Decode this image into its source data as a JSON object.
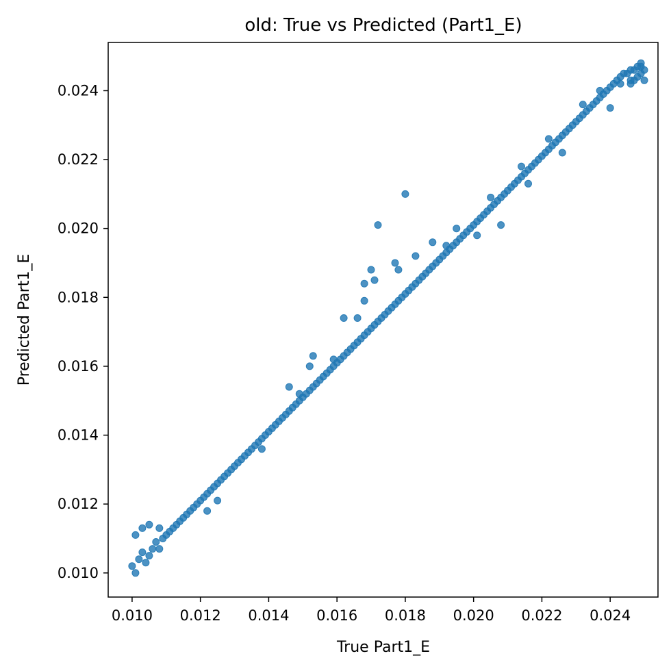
{
  "chart_data": {
    "type": "scatter",
    "title": "old: True vs Predicted (Part1_E)",
    "xlabel": "True Part1_E",
    "ylabel": "Predicted Part1_E",
    "xlim": [
      0.0093,
      0.0254
    ],
    "ylim": [
      0.0093,
      0.0254
    ],
    "xticks": [
      "0.010",
      "0.012",
      "0.014",
      "0.016",
      "0.018",
      "0.020",
      "0.022",
      "0.024"
    ],
    "yticks": [
      "0.010",
      "0.012",
      "0.014",
      "0.016",
      "0.018",
      "0.020",
      "0.022",
      "0.024"
    ],
    "grid": false,
    "marker_color": "#1f77b4",
    "series": [
      {
        "points": [
          [
            0.01,
            0.0102
          ],
          [
            0.0101,
            0.01
          ],
          [
            0.0102,
            0.0104
          ],
          [
            0.0103,
            0.0106
          ],
          [
            0.0104,
            0.0103
          ],
          [
            0.0105,
            0.0105
          ],
          [
            0.0106,
            0.0107
          ],
          [
            0.0107,
            0.0109
          ],
          [
            0.0108,
            0.0107
          ],
          [
            0.0109,
            0.011
          ],
          [
            0.011,
            0.0111
          ],
          [
            0.0111,
            0.0112
          ],
          [
            0.0112,
            0.0113
          ],
          [
            0.0113,
            0.0114
          ],
          [
            0.0114,
            0.0115
          ],
          [
            0.0115,
            0.0116
          ],
          [
            0.0116,
            0.0117
          ],
          [
            0.0117,
            0.0118
          ],
          [
            0.0118,
            0.0119
          ],
          [
            0.0119,
            0.012
          ],
          [
            0.012,
            0.0121
          ],
          [
            0.0121,
            0.0122
          ],
          [
            0.0122,
            0.0123
          ],
          [
            0.0123,
            0.0124
          ],
          [
            0.0124,
            0.0125
          ],
          [
            0.0125,
            0.0126
          ],
          [
            0.0126,
            0.0127
          ],
          [
            0.0127,
            0.0128
          ],
          [
            0.0128,
            0.0129
          ],
          [
            0.0129,
            0.013
          ],
          [
            0.013,
            0.0131
          ],
          [
            0.0131,
            0.0132
          ],
          [
            0.0132,
            0.0133
          ],
          [
            0.0133,
            0.0134
          ],
          [
            0.0134,
            0.0135
          ],
          [
            0.0135,
            0.0136
          ],
          [
            0.0136,
            0.0137
          ],
          [
            0.0137,
            0.0138
          ],
          [
            0.0138,
            0.0139
          ],
          [
            0.0139,
            0.014
          ],
          [
            0.014,
            0.0141
          ],
          [
            0.0141,
            0.0142
          ],
          [
            0.0142,
            0.0143
          ],
          [
            0.0143,
            0.0144
          ],
          [
            0.0144,
            0.0145
          ],
          [
            0.0145,
            0.0146
          ],
          [
            0.0146,
            0.0147
          ],
          [
            0.0147,
            0.0148
          ],
          [
            0.0148,
            0.0149
          ],
          [
            0.0149,
            0.015
          ],
          [
            0.015,
            0.0151
          ],
          [
            0.0151,
            0.0152
          ],
          [
            0.0152,
            0.0153
          ],
          [
            0.0153,
            0.0154
          ],
          [
            0.0154,
            0.0155
          ],
          [
            0.0155,
            0.0156
          ],
          [
            0.0156,
            0.0157
          ],
          [
            0.0157,
            0.0158
          ],
          [
            0.0158,
            0.0159
          ],
          [
            0.0159,
            0.016
          ],
          [
            0.016,
            0.0161
          ],
          [
            0.0161,
            0.0162
          ],
          [
            0.0162,
            0.0163
          ],
          [
            0.0163,
            0.0164
          ],
          [
            0.0164,
            0.0165
          ],
          [
            0.0165,
            0.0166
          ],
          [
            0.0166,
            0.0167
          ],
          [
            0.0167,
            0.0168
          ],
          [
            0.0168,
            0.0169
          ],
          [
            0.0169,
            0.017
          ],
          [
            0.017,
            0.0171
          ],
          [
            0.0171,
            0.0172
          ],
          [
            0.0172,
            0.0173
          ],
          [
            0.0173,
            0.0174
          ],
          [
            0.0174,
            0.0175
          ],
          [
            0.0175,
            0.0176
          ],
          [
            0.0176,
            0.0177
          ],
          [
            0.0177,
            0.0178
          ],
          [
            0.0178,
            0.0179
          ],
          [
            0.0179,
            0.018
          ],
          [
            0.018,
            0.0181
          ],
          [
            0.0181,
            0.0182
          ],
          [
            0.0182,
            0.0183
          ],
          [
            0.0183,
            0.0184
          ],
          [
            0.0184,
            0.0185
          ],
          [
            0.0185,
            0.0186
          ],
          [
            0.0186,
            0.0187
          ],
          [
            0.0187,
            0.0188
          ],
          [
            0.0188,
            0.0189
          ],
          [
            0.0189,
            0.019
          ],
          [
            0.019,
            0.0191
          ],
          [
            0.0191,
            0.0192
          ],
          [
            0.0192,
            0.0193
          ],
          [
            0.0193,
            0.0194
          ],
          [
            0.0194,
            0.0195
          ],
          [
            0.0195,
            0.0196
          ],
          [
            0.0196,
            0.0197
          ],
          [
            0.0197,
            0.0198
          ],
          [
            0.0198,
            0.0199
          ],
          [
            0.0199,
            0.02
          ],
          [
            0.02,
            0.0201
          ],
          [
            0.0201,
            0.0202
          ],
          [
            0.0202,
            0.0203
          ],
          [
            0.0203,
            0.0204
          ],
          [
            0.0204,
            0.0205
          ],
          [
            0.0205,
            0.0206
          ],
          [
            0.0206,
            0.0207
          ],
          [
            0.0207,
            0.0208
          ],
          [
            0.0208,
            0.0209
          ],
          [
            0.0209,
            0.021
          ],
          [
            0.021,
            0.0211
          ],
          [
            0.0211,
            0.0212
          ],
          [
            0.0212,
            0.0213
          ],
          [
            0.0213,
            0.0214
          ],
          [
            0.0214,
            0.0215
          ],
          [
            0.0215,
            0.0216
          ],
          [
            0.0216,
            0.0217
          ],
          [
            0.0217,
            0.0218
          ],
          [
            0.0218,
            0.0219
          ],
          [
            0.0219,
            0.022
          ],
          [
            0.022,
            0.0221
          ],
          [
            0.0221,
            0.0222
          ],
          [
            0.0222,
            0.0223
          ],
          [
            0.0223,
            0.0224
          ],
          [
            0.0224,
            0.0225
          ],
          [
            0.0225,
            0.0226
          ],
          [
            0.0226,
            0.0227
          ],
          [
            0.0227,
            0.0228
          ],
          [
            0.0228,
            0.0229
          ],
          [
            0.0229,
            0.023
          ],
          [
            0.023,
            0.0231
          ],
          [
            0.0231,
            0.0232
          ],
          [
            0.0232,
            0.0233
          ],
          [
            0.0233,
            0.0234
          ],
          [
            0.0234,
            0.0235
          ],
          [
            0.0235,
            0.0236
          ],
          [
            0.0236,
            0.0237
          ],
          [
            0.0237,
            0.0238
          ],
          [
            0.0238,
            0.0239
          ],
          [
            0.0239,
            0.024
          ],
          [
            0.024,
            0.0241
          ],
          [
            0.0241,
            0.0242
          ],
          [
            0.0242,
            0.0243
          ],
          [
            0.0243,
            0.0244
          ],
          [
            0.0244,
            0.0245
          ],
          [
            0.0245,
            0.0245
          ],
          [
            0.0246,
            0.0246
          ],
          [
            0.0247,
            0.0246
          ],
          [
            0.0248,
            0.0247
          ],
          [
            0.0249,
            0.0247
          ],
          [
            0.025,
            0.0246
          ],
          [
            0.0249,
            0.0245
          ],
          [
            0.0248,
            0.0244
          ],
          [
            0.0247,
            0.0243
          ],
          [
            0.0246,
            0.0242
          ],
          [
            0.0101,
            0.0111
          ],
          [
            0.0103,
            0.0113
          ],
          [
            0.0105,
            0.0114
          ],
          [
            0.0108,
            0.0113
          ],
          [
            0.0122,
            0.0118
          ],
          [
            0.0125,
            0.0121
          ],
          [
            0.0138,
            0.0136
          ],
          [
            0.0146,
            0.0154
          ],
          [
            0.0149,
            0.0152
          ],
          [
            0.0152,
            0.016
          ],
          [
            0.0153,
            0.0163
          ],
          [
            0.0159,
            0.0162
          ],
          [
            0.0162,
            0.0174
          ],
          [
            0.0166,
            0.0174
          ],
          [
            0.0168,
            0.0179
          ],
          [
            0.0168,
            0.0184
          ],
          [
            0.017,
            0.0188
          ],
          [
            0.0171,
            0.0185
          ],
          [
            0.0172,
            0.0201
          ],
          [
            0.0178,
            0.0188
          ],
          [
            0.0177,
            0.019
          ],
          [
            0.0183,
            0.0192
          ],
          [
            0.0188,
            0.0196
          ],
          [
            0.018,
            0.021
          ],
          [
            0.0192,
            0.0195
          ],
          [
            0.0195,
            0.02
          ],
          [
            0.0201,
            0.0198
          ],
          [
            0.0205,
            0.0209
          ],
          [
            0.0208,
            0.0201
          ],
          [
            0.0214,
            0.0218
          ],
          [
            0.0216,
            0.0213
          ],
          [
            0.0222,
            0.0226
          ],
          [
            0.0226,
            0.0222
          ],
          [
            0.0232,
            0.0236
          ],
          [
            0.024,
            0.0235
          ],
          [
            0.0237,
            0.024
          ],
          [
            0.0243,
            0.0242
          ],
          [
            0.0246,
            0.0243
          ],
          [
            0.0249,
            0.0248
          ],
          [
            0.025,
            0.0243
          ]
        ]
      }
    ]
  }
}
